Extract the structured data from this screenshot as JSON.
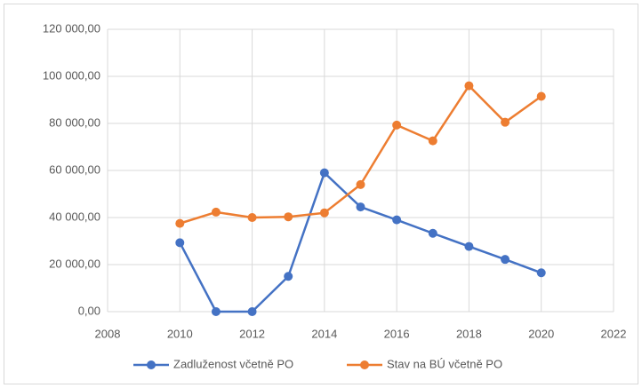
{
  "chart_data": {
    "type": "line",
    "x": [
      2010,
      2011,
      2012,
      2013,
      2014,
      2015,
      2016,
      2017,
      2018,
      2019,
      2020
    ],
    "series": [
      {
        "name": "Zadluženost včetně PO",
        "color": "#4472c4",
        "values": [
          29300,
          0,
          0,
          15000,
          59000,
          44500,
          39000,
          33300,
          27700,
          22200,
          16500
        ]
      },
      {
        "name": "Stav na BÚ včetně PO",
        "color": "#ed7d31",
        "values": [
          37500,
          42300,
          40000,
          40300,
          42000,
          54000,
          79300,
          72600,
          96000,
          80500,
          91500
        ]
      }
    ],
    "xlim": [
      2008,
      2022
    ],
    "xticks": [
      2008,
      2010,
      2012,
      2014,
      2016,
      2018,
      2020,
      2022
    ],
    "ylim": [
      0,
      120000
    ],
    "yticks": [
      {
        "value": 0,
        "label": "0,00"
      },
      {
        "value": 20000,
        "label": "20 000,00"
      },
      {
        "value": 40000,
        "label": "40 000,00"
      },
      {
        "value": 60000,
        "label": "60 000,00"
      },
      {
        "value": 80000,
        "label": "80 000,00"
      },
      {
        "value": 100000,
        "label": "100 000,00"
      },
      {
        "value": 120000,
        "label": "120 000,00"
      }
    ],
    "grid": true,
    "legend": "bottom"
  }
}
